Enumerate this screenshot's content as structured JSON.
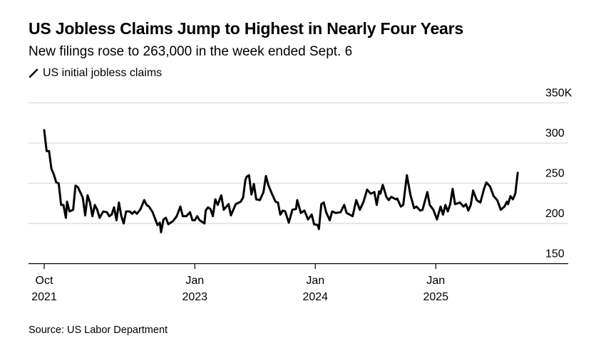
{
  "chart_data": {
    "type": "line",
    "title": "US Jobless Claims Jump to Highest in Nearly Four Years",
    "subtitle": "New filings rose to 263,000 in the week ended Sept. 6",
    "legend": [
      {
        "name": "US initial jobless claims",
        "color": "#000000",
        "icon": "line-slash-icon"
      }
    ],
    "legend_placement": "top-left",
    "source": "Source: US Labor Department",
    "ylim": [
      150,
      350
    ],
    "y_ticks": [
      {
        "value": 350,
        "label": "350K"
      },
      {
        "value": 300,
        "label": "300"
      },
      {
        "value": 250,
        "label": "250"
      },
      {
        "value": 200,
        "label": "200"
      },
      {
        "value": 150,
        "label": "150"
      }
    ],
    "x_ticks": [
      {
        "value": 2021.75,
        "label": [
          "Oct",
          "2021"
        ]
      },
      {
        "value": 2023.0,
        "label": [
          "Jan",
          "2023"
        ]
      },
      {
        "value": 2024.0,
        "label": [
          "Jan",
          "2024"
        ]
      },
      {
        "value": 2025.0,
        "label": [
          "Jan",
          "2025"
        ]
      }
    ],
    "xlim": [
      2021.62,
      2026.06
    ],
    "grid": true,
    "units": "thousands",
    "series": [
      {
        "name": "US initial jobless claims",
        "x": [
          2021.75,
          2021.77,
          2021.79,
          2021.81,
          2021.83,
          2021.85,
          2021.87,
          2021.89,
          2021.91,
          2021.93,
          2021.94,
          2021.96,
          2021.99,
          2022.01,
          2022.03,
          2022.07,
          2022.09,
          2022.11,
          2022.13,
          2022.15,
          2022.17,
          2022.19,
          2022.21,
          2022.24,
          2022.27,
          2022.29,
          2022.31,
          2022.33,
          2022.35,
          2022.37,
          2022.39,
          2022.41,
          2022.43,
          2022.46,
          2022.48,
          2022.5,
          2022.52,
          2022.55,
          2022.58,
          2022.6,
          2022.62,
          2022.65,
          2022.69,
          2022.71,
          2022.72,
          2022.74,
          2022.76,
          2022.78,
          2022.82,
          2022.85,
          2022.88,
          2022.9,
          2022.93,
          2022.96,
          2022.98,
          2023.0,
          2023.02,
          2023.04,
          2023.08,
          2023.09,
          2023.11,
          2023.13,
          2023.15,
          2023.17,
          2023.19,
          2023.22,
          2023.24,
          2023.28,
          2023.3,
          2023.34,
          2023.38,
          2023.4,
          2023.42,
          2023.43,
          2023.45,
          2023.47,
          2023.49,
          2023.51,
          2023.54,
          2023.57,
          2023.59,
          2023.61,
          2023.64,
          2023.67,
          2023.69,
          2023.71,
          2023.73,
          2023.75,
          2023.78,
          2023.81,
          2023.84,
          2023.85,
          2023.88,
          2023.91,
          2023.94,
          2023.97,
          2023.99,
          2024.02,
          2024.03,
          2024.05,
          2024.07,
          2024.09,
          2024.12,
          2024.14,
          2024.17,
          2024.21,
          2024.24,
          2024.26,
          2024.31,
          2024.34,
          2024.37,
          2024.4,
          2024.43,
          2024.46,
          2024.49,
          2024.51,
          2024.53,
          2024.54,
          2024.56,
          2024.59,
          2024.61,
          2024.63,
          2024.67,
          2024.68,
          2024.71,
          2024.73,
          2024.76,
          2024.79,
          2024.82,
          2024.84,
          2024.87,
          2024.89,
          2024.93,
          2024.95,
          2024.98,
          2025.01,
          2025.04,
          2025.06,
          2025.08,
          2025.1,
          2025.12,
          2025.14,
          2025.16,
          2025.2,
          2025.23,
          2025.25,
          2025.27,
          2025.29,
          2025.31,
          2025.34,
          2025.37,
          2025.4,
          2025.42,
          2025.45,
          2025.48,
          2025.51,
          2025.54,
          2025.57,
          2025.59,
          2025.6,
          2025.62,
          2025.64,
          2025.66,
          2025.68
        ],
        "y": [
          316,
          290,
          290,
          268,
          261,
          251,
          250,
          223,
          223,
          207,
          227,
          215,
          217,
          247,
          245,
          232,
          210,
          235,
          226,
          209,
          223,
          217,
          207,
          215,
          214,
          209,
          211,
          220,
          204,
          226,
          209,
          200,
          215,
          215,
          212,
          215,
          212,
          218,
          229,
          223,
          221,
          214,
          198,
          201,
          189,
          205,
          207,
          199,
          203,
          209,
          221,
          209,
          209,
          214,
          204,
          204,
          209,
          204,
          200,
          216,
          220,
          218,
          209,
          230,
          223,
          235,
          217,
          224,
          210,
          224,
          227,
          232,
          254,
          258,
          260,
          236,
          249,
          230,
          229,
          239,
          259,
          248,
          237,
          227,
          226,
          211,
          216,
          215,
          201,
          217,
          218,
          229,
          213,
          216,
          205,
          211,
          199,
          198,
          193,
          224,
          226,
          214,
          204,
          215,
          213,
          214,
          223,
          213,
          209,
          229,
          217,
          227,
          242,
          237,
          239,
          223,
          240,
          237,
          248,
          233,
          229,
          233,
          230,
          231,
          221,
          223,
          260,
          235,
          219,
          221,
          216,
          217,
          239,
          223,
          217,
          205,
          221,
          211,
          223,
          215,
          224,
          243,
          224,
          226,
          221,
          224,
          216,
          223,
          241,
          229,
          226,
          243,
          251,
          246,
          234,
          229,
          217,
          221,
          227,
          224,
          234,
          230,
          237,
          263
        ]
      }
    ]
  }
}
